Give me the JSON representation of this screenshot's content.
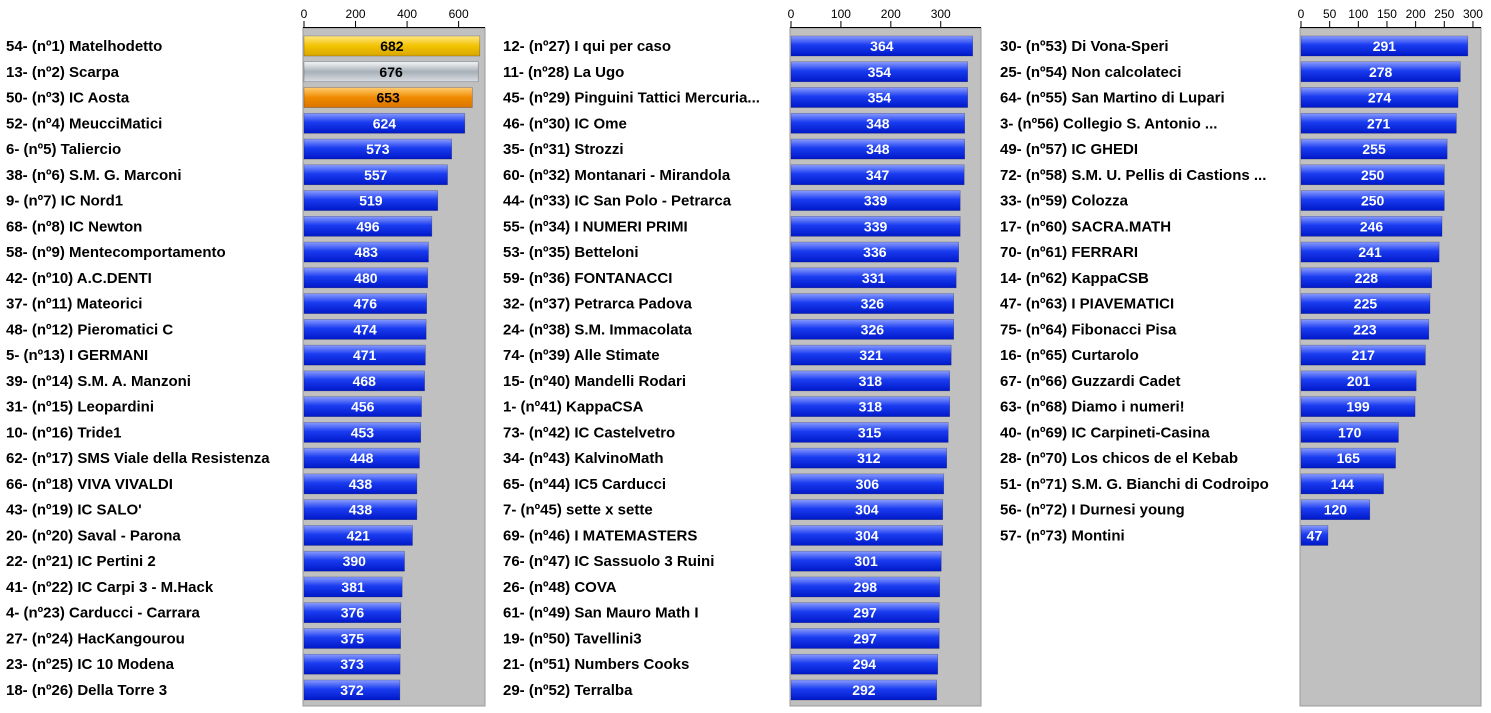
{
  "chart_data": [
    {
      "type": "bar",
      "orientation": "horizontal",
      "xlim": [
        0,
        700
      ],
      "xticks": [
        0,
        200,
        400,
        600
      ],
      "categories": [
        "54- (nº1) Matelhodetto",
        "13- (nº2) Scarpa",
        "50- (nº3) IC Aosta",
        "52- (nº4) MeucciMatici",
        "6- (nº5) Taliercio",
        "38- (nº6) S.M. G. Marconi",
        "9- (nº7) IC Nord1",
        "68- (nº8) IC Newton",
        "58- (nº9) Mentecomportamento",
        "42- (nº10) A.C.DENTI",
        "37- (nº11) Mateorici",
        "48- (nº12) Pieromatici C",
        "5- (nº13) I GERMANI",
        "39- (nº14) S.M. A. Manzoni",
        "31- (nº15) Leopardini",
        "10- (nº16) Tride1",
        "62- (nº17) SMS Viale della Resistenza",
        "66- (nº18) VIVA VIVALDI",
        "43- (nº19) IC SALO'",
        "20- (nº20) Saval - Parona",
        "22- (nº21) IC Pertini 2",
        "41- (nº22) IC Carpi 3 - M.Hack",
        "4- (nº23) Carducci - Carrara",
        "27- (nº24) HacKangourou",
        "23- (nº25) IC 10 Modena",
        "18- (nº26) Della Torre 3"
      ],
      "values": [
        682,
        676,
        653,
        624,
        573,
        557,
        519,
        496,
        483,
        480,
        476,
        474,
        471,
        468,
        456,
        453,
        448,
        438,
        438,
        421,
        390,
        381,
        376,
        375,
        373,
        372
      ],
      "bar_colors": [
        "gold",
        "silver",
        "bronze",
        "blue",
        "blue",
        "blue",
        "blue",
        "blue",
        "blue",
        "blue",
        "blue",
        "blue",
        "blue",
        "blue",
        "blue",
        "blue",
        "blue",
        "blue",
        "blue",
        "blue",
        "blue",
        "blue",
        "blue",
        "blue",
        "blue",
        "blue"
      ]
    },
    {
      "type": "bar",
      "orientation": "horizontal",
      "xlim": [
        0,
        375
      ],
      "xticks": [
        0,
        100,
        200,
        300
      ],
      "categories": [
        "12- (nº27) I qui per caso",
        "11- (nº28) La Ugo",
        "45- (nº29) Pinguini Tattici Mercuria...",
        "46- (nº30) IC Ome",
        "35- (nº31) Strozzi",
        "60- (nº32) Montanari - Mirandola",
        "44- (nº33) IC San Polo - Petrarca",
        "55- (nº34) I NUMERI PRIMI",
        "53- (nº35) Betteloni",
        "59- (nº36) FONTANACCI",
        "32- (nº37) Petrarca Padova",
        "24- (nº38) S.M. Immacolata",
        "74- (nº39) Alle Stimate",
        "15- (nº40) Mandelli Rodari",
        "1- (nº41) KappaCSA",
        "73- (nº42) IC Castelvetro",
        "34- (nº43) KalvinoMath",
        "65- (nº44) IC5 Carducci",
        "7- (nº45) sette x sette",
        "69- (nº46) I MATEMASTERS",
        "76- (nº47) IC Sassuolo 3 Ruini",
        "26- (nº48) COVA",
        "61- (nº49) San Mauro Math I",
        "19- (nº50) Tavellini3",
        "21- (nº51) Numbers Cooks",
        "29- (nº52) Terralba"
      ],
      "values": [
        364,
        354,
        354,
        348,
        348,
        347,
        339,
        339,
        336,
        331,
        326,
        326,
        321,
        318,
        318,
        315,
        312,
        306,
        304,
        304,
        301,
        298,
        297,
        297,
        294,
        292
      ],
      "bar_colors": [
        "blue",
        "blue",
        "blue",
        "blue",
        "blue",
        "blue",
        "blue",
        "blue",
        "blue",
        "blue",
        "blue",
        "blue",
        "blue",
        "blue",
        "blue",
        "blue",
        "blue",
        "blue",
        "blue",
        "blue",
        "blue",
        "blue",
        "blue",
        "blue",
        "blue",
        "blue"
      ]
    },
    {
      "type": "bar",
      "orientation": "horizontal",
      "xlim": [
        0,
        300
      ],
      "xticks": [
        0,
        50,
        100,
        150,
        200,
        250,
        300
      ],
      "categories": [
        "30- (nº53) Di Vona-Speri",
        "25- (nº54) Non calcolateci",
        "64- (nº55) San Martino di Lupari",
        "3- (nº56) Collegio S. Antonio ...",
        "49- (nº57) IC GHEDI",
        "72- (nº58) S.M. U. Pellis di Castions ...",
        "33- (nº59) Colozza",
        "17- (nº60) SACRA.MATH",
        "70- (nº61) FERRARI",
        "14- (nº62) KappaCSB",
        "47- (nº63) I PIAVEMATICI",
        "75- (nº64) Fibonacci Pisa",
        "16- (nº65) Curtarolo",
        "67- (nº66) Guzzardi Cadet",
        "63- (nº68) Diamo i numeri!",
        "40- (nº69) IC Carpineti-Casina",
        "28- (nº70) Los chicos de el Kebab",
        "51- (nº71) S.M. G. Bianchi di Codroipo",
        "56- (nº72) I Durnesi young",
        "57- (nº73) Montini"
      ],
      "values": [
        291,
        278,
        274,
        271,
        255,
        250,
        250,
        246,
        241,
        228,
        225,
        223,
        217,
        201,
        199,
        170,
        165,
        144,
        120,
        47
      ],
      "bar_colors": [
        "blue",
        "blue",
        "blue",
        "blue",
        "blue",
        "blue",
        "blue",
        "blue",
        "blue",
        "blue",
        "blue",
        "blue",
        "blue",
        "blue",
        "blue",
        "blue",
        "blue",
        "blue",
        "blue",
        "blue"
      ]
    }
  ],
  "colors": {
    "plot_background": "#c0c0c0",
    "blue_light": "#8a9cff",
    "blue": "#1a3cf0",
    "blue_dark": "#0018c8",
    "gold_light": "#ffe680",
    "gold": "#f2c200",
    "silver_light": "#f4f6f8",
    "silver": "#a8b0b8",
    "bronze_light": "#ffcc70",
    "bronze": "#f08a00",
    "value_on_blue": "#ffffff",
    "value_on_medal": "#000000"
  }
}
